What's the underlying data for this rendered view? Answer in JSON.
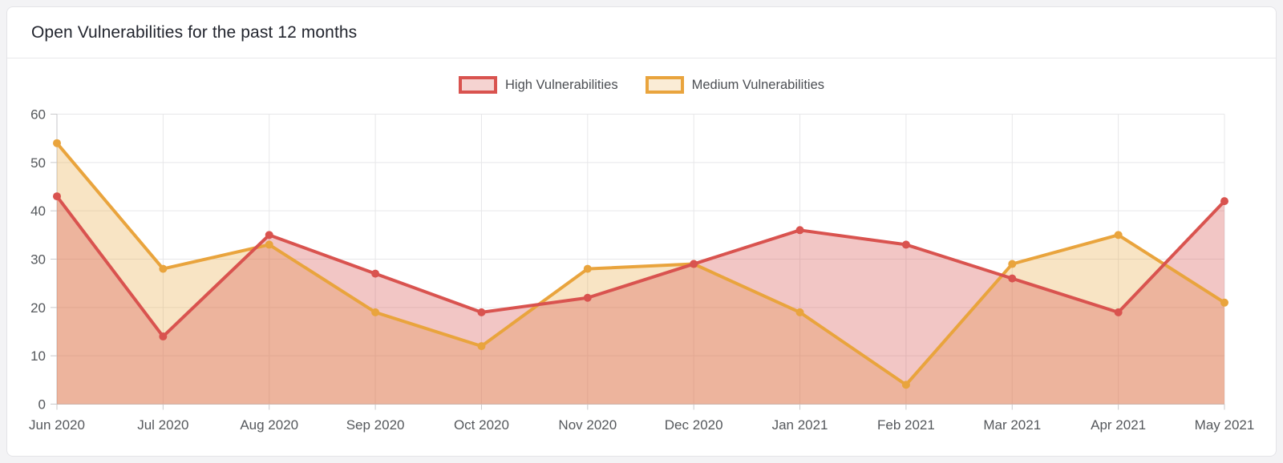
{
  "header": {
    "title": "Open Vulnerabilities for the past 12 months"
  },
  "legend": {
    "items": [
      {
        "label": "High Vulnerabilities",
        "series": "high"
      },
      {
        "label": "Medium Vulnerabilities",
        "series": "medium"
      }
    ]
  },
  "axis": {
    "grid_color": "#e7e7e9",
    "axis_color": "#c5c6c8",
    "tick_color": "#c9c9cb",
    "label_color": "#55585c"
  },
  "chart_data": {
    "type": "area",
    "title": "Open Vulnerabilities for the past 12 months",
    "categories": [
      "Jun 2020",
      "Jul 2020",
      "Aug 2020",
      "Sep 2020",
      "Oct 2020",
      "Nov 2020",
      "Dec 2020",
      "Jan 2021",
      "Feb 2021",
      "Mar 2021",
      "Apr 2021",
      "May 2021"
    ],
    "series": [
      {
        "name": "High Vulnerabilities",
        "key": "high",
        "line_color": "#d9534f",
        "fill_color": "rgba(217,83,79,0.33)",
        "legend_fill": "#f5d3d1",
        "values": [
          43,
          14,
          35,
          27,
          19,
          22,
          29,
          36,
          33,
          26,
          19,
          42
        ]
      },
      {
        "name": "Medium Vulnerabilities",
        "key": "medium",
        "line_color": "#e9a43d",
        "fill_color": "rgba(233,164,61,0.30)",
        "legend_fill": "#faecd6",
        "values": [
          54,
          28,
          33,
          19,
          12,
          28,
          29,
          19,
          4,
          29,
          35,
          21
        ]
      }
    ],
    "xlabel": "",
    "ylabel": "",
    "ylim": [
      0,
      60
    ],
    "yticks": [
      0,
      10,
      20,
      30,
      40,
      50,
      60
    ],
    "grid": true,
    "legend_position": "top"
  }
}
